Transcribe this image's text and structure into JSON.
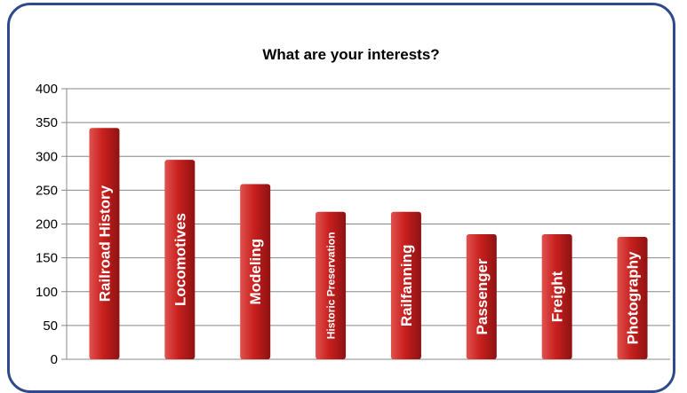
{
  "chart_data": {
    "type": "bar",
    "title": "What are your interests?",
    "xlabel": "",
    "ylabel": "",
    "categories": [
      "Railroad History",
      "Locomotives",
      "Modeling",
      "Historic Preservation",
      "Railfanning",
      "Passenger",
      "Freight",
      "Photography"
    ],
    "values": [
      342,
      295,
      259,
      218,
      218,
      185,
      185,
      181
    ],
    "ylim": [
      0,
      400
    ],
    "yticks": [
      "0",
      "50",
      "100",
      "150",
      "200",
      "250",
      "300",
      "350",
      "400"
    ],
    "grid": true,
    "legend": "none",
    "colors": {
      "bar_light": "#e0524f",
      "bar_mid": "#c8201e",
      "bar_dark": "#8e1212",
      "frame": "#2f4a8c",
      "grid": "#888888"
    }
  }
}
